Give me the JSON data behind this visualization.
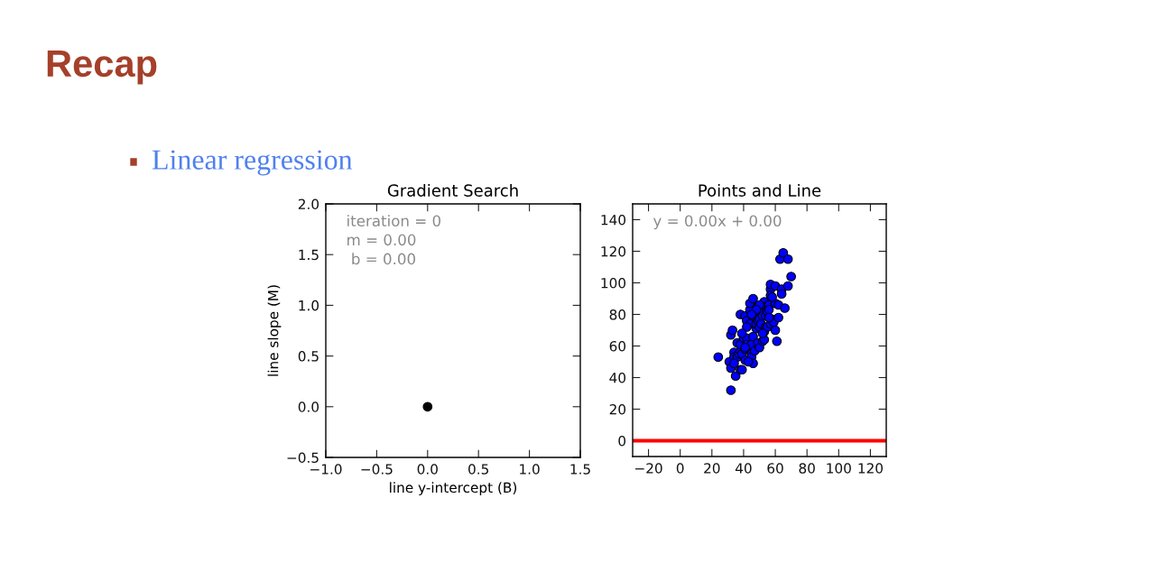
{
  "chart_data": [
    {
      "type": "other",
      "title": "Recap",
      "annotations": [
        "Linear regression"
      ]
    },
    {
      "type": "scatter",
      "title": "Gradient Search",
      "xlabel": "line y-intercept (B)",
      "ylabel": "line slope (M)",
      "marker": "circle",
      "series": [
        {
          "type": "scatter",
          "color": "#000000",
          "x": [
            0
          ],
          "values": [
            0
          ]
        }
      ],
      "xlim": [
        -1,
        1.5
      ],
      "ylim": [
        -0.5,
        2
      ],
      "xticks": [
        {
          "value": -1,
          "label": "−1.0"
        },
        {
          "value": -0.5,
          "label": "−0.5"
        },
        {
          "value": 0,
          "label": "0.0"
        },
        {
          "value": 0.5,
          "label": "0.5"
        },
        {
          "value": 1,
          "label": "1.0"
        },
        {
          "value": 1.5,
          "label": "1.5"
        }
      ],
      "yticks": [
        {
          "value": -0.5,
          "label": "−0.5"
        },
        {
          "value": 0,
          "label": "0.0"
        },
        {
          "value": 0.5,
          "label": "0.5"
        },
        {
          "value": 1,
          "label": "1.0"
        },
        {
          "value": 1.5,
          "label": "1.5"
        },
        {
          "value": 2,
          "label": "2.0"
        }
      ],
      "annotations": [
        "iteration = 0",
        "m = 0.00",
        " b = 0.00"
      ]
    },
    {
      "type": "scatter",
      "title": "Points and Line",
      "series": [
        {
          "type": "scatter",
          "color": "#0000ff",
          "marker": "circle",
          "x": [
            24,
            31,
            32,
            32,
            32,
            33,
            35,
            34,
            34,
            36,
            37,
            36,
            38,
            38,
            39,
            38,
            38,
            39,
            40,
            41,
            41,
            41,
            42,
            42,
            42,
            44,
            44,
            44,
            45,
            45,
            45,
            46,
            46,
            46,
            46,
            47,
            48,
            48,
            49,
            49,
            50,
            49,
            50,
            50,
            51,
            51,
            52,
            52,
            53,
            53,
            54,
            53,
            54,
            54,
            55,
            55,
            56,
            56,
            57,
            57,
            57,
            57,
            58,
            59,
            60,
            60,
            60,
            61,
            62,
            62,
            63,
            64,
            64,
            65,
            66,
            68,
            68,
            70,
            58,
            50,
            42,
            39,
            41,
            34,
            43,
            52,
            56,
            48,
            45
          ],
          "values": [
            53,
            50,
            46,
            32,
            67,
            70,
            41,
            56,
            53,
            53,
            55,
            62,
            57,
            45,
            45,
            80,
            61,
            55,
            65,
            58,
            51,
            79,
            76,
            65,
            61,
            74,
            83,
            87,
            61,
            55,
            53,
            49,
            90,
            79,
            66,
            57,
            71,
            74,
            76,
            62,
            59,
            85,
            72,
            77,
            82,
            74,
            79,
            63,
            64,
            69,
            72,
            88,
            85,
            79,
            82,
            72,
            86,
            83,
            74,
            96,
            99,
            92,
            77,
            75,
            87,
            70,
            98,
            63,
            78,
            86,
            115,
            96,
            93,
            119,
            84,
            98,
            115,
            104,
            91,
            86,
            72,
            68,
            59,
            49,
            50,
            68,
            78,
            83,
            80
          ]
        },
        {
          "type": "line",
          "color": "#ff0000",
          "x": [
            -30,
            130
          ],
          "values": [
            0,
            0
          ]
        }
      ],
      "xlim": [
        -30,
        130
      ],
      "ylim": [
        -10,
        150
      ],
      "xticks": [
        {
          "value": -20,
          "label": "−20"
        },
        0,
        20,
        40,
        60,
        80,
        100,
        120
      ],
      "yticks": [
        0,
        20,
        40,
        60,
        80,
        100,
        120,
        140
      ],
      "annotations": [
        "y = 0.00x + 0.00"
      ]
    }
  ]
}
